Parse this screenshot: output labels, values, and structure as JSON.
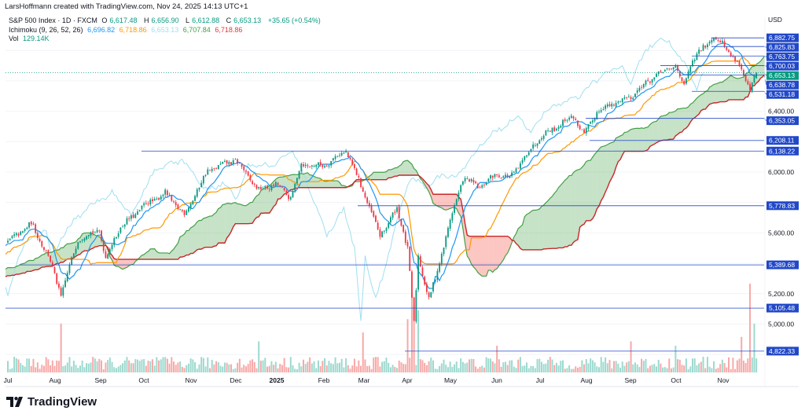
{
  "header": {
    "credit": "LarsHoffmann created with TradingView.com, Nov 24, 2025 14:13 UTC+1",
    "symbol": "S&P 500 Index · 1D · FXCM",
    "ohlc": {
      "o_label": "O",
      "o": "6,617.48",
      "h_label": "H",
      "h": "6,656.90",
      "l_label": "L",
      "l": "6,612.88",
      "c_label": "C",
      "c": "6,653.13",
      "change": "+35.65 (+0.54%)"
    },
    "ichimoku": {
      "label": "Ichimoku (9, 26, 52, 26)",
      "conversion": "6,696.82",
      "base": "6,718.86",
      "lagging": "6,653.13",
      "lead_a": "6,707.84",
      "lead_b": "6,718.86"
    },
    "volume": {
      "label": "Vol",
      "value": "129.14K"
    }
  },
  "currency": "USD",
  "brand": "TradingView",
  "colors": {
    "up": "#089981",
    "down": "#f23645",
    "conversion": "#2196f3",
    "base": "#ff9800",
    "lagging": "#9fdff0",
    "lead_a": "#43a047",
    "lead_b": "#c62828",
    "level": "#2148c8",
    "last_price": "#089981"
  },
  "chart_data": {
    "type": "candlestick",
    "title": "S&P 500 Index · 1D · FXCM",
    "ylim": [
      4760,
      7000
    ],
    "y_ticks": [
      "6,400.00",
      "6,000.00",
      "5,600.00",
      "5,200.00",
      "5,000.00"
    ],
    "y_tick_values": [
      6400,
      6000,
      5600,
      5200,
      5000
    ],
    "x_ticks": [
      "Jul",
      "Aug",
      "Sep",
      "Oct",
      "Nov",
      "Dec",
      "2025",
      "Feb",
      "Mar",
      "Apr",
      "May",
      "Jun",
      "Jul",
      "Aug",
      "Sep",
      "Oct",
      "Nov"
    ],
    "price_path": [
      [
        -80,
        5200
      ],
      [
        -40,
        5300
      ],
      [
        -20,
        5450
      ],
      [
        0,
        5540
      ],
      [
        11,
        5660
      ],
      [
        19,
        5450
      ],
      [
        25,
        5190
      ],
      [
        33,
        5560
      ],
      [
        43,
        5620
      ],
      [
        46,
        5430
      ],
      [
        52,
        5620
      ],
      [
        64,
        5780
      ],
      [
        74,
        5860
      ],
      [
        83,
        5720
      ],
      [
        94,
        6010
      ],
      [
        107,
        6080
      ],
      [
        118,
        5880
      ],
      [
        126,
        5920
      ],
      [
        133,
        5830
      ],
      [
        138,
        6050
      ],
      [
        148,
        6040
      ],
      [
        159,
        6140
      ],
      [
        167,
        5880
      ],
      [
        175,
        5580
      ],
      [
        183,
        5760
      ],
      [
        188,
        5500
      ],
      [
        191,
        5000
      ],
      [
        193,
        5450
      ],
      [
        198,
        5160
      ],
      [
        201,
        5300
      ],
      [
        208,
        5680
      ],
      [
        214,
        5960
      ],
      [
        222,
        5900
      ],
      [
        230,
        5990
      ],
      [
        236,
        5960
      ],
      [
        250,
        6230
      ],
      [
        266,
        6370
      ],
      [
        271,
        6240
      ],
      [
        277,
        6400
      ],
      [
        293,
        6500
      ],
      [
        303,
        6620
      ],
      [
        314,
        6700
      ],
      [
        318,
        6560
      ],
      [
        321,
        6710
      ],
      [
        331,
        6890
      ],
      [
        336,
        6850
      ],
      [
        344,
        6700
      ],
      [
        349,
        6540
      ],
      [
        352,
        6653.13
      ]
    ],
    "last_bar": {
      "open": 6617.48,
      "high": 6656.9,
      "low": 6612.88,
      "close": 6653.13
    },
    "last_price_label": "6,653.13",
    "levels": [
      {
        "value": 6882.75,
        "label": "6,882.75"
      },
      {
        "value": 6825.83,
        "label": "6,825.83"
      },
      {
        "value": 6763.75,
        "label": "6,763.75"
      },
      {
        "value": 6700.03,
        "label": "6,700.03"
      },
      {
        "value": 6638.78,
        "label": "6,638.78"
      },
      {
        "value": 6531.18,
        "label": "6,531.18"
      },
      {
        "value": 6353.05,
        "label": "6,353.05"
      },
      {
        "value": 6208.11,
        "label": "6,208.11"
      },
      {
        "value": 6138.22,
        "label": "6,138.22"
      },
      {
        "value": 5778.83,
        "label": "5,778.83"
      },
      {
        "value": 5389.68,
        "label": "5,389.68"
      },
      {
        "value": 5105.48,
        "label": "5,105.48"
      },
      {
        "value": 4822.33,
        "label": "4,822.33"
      }
    ],
    "ichimoku_params": [
      9,
      26,
      52,
      26
    ],
    "volume_spikes": [
      [
        25,
        0.55
      ],
      [
        118,
        0.35
      ],
      [
        167,
        0.45
      ],
      [
        188,
        0.6
      ],
      [
        190,
        0.9
      ],
      [
        191,
        0.75
      ],
      [
        193,
        0.7
      ],
      [
        230,
        0.3
      ],
      [
        293,
        0.35
      ],
      [
        314,
        0.3
      ],
      [
        345,
        0.4
      ],
      [
        349,
        1.0
      ],
      [
        351,
        0.55
      ]
    ]
  }
}
